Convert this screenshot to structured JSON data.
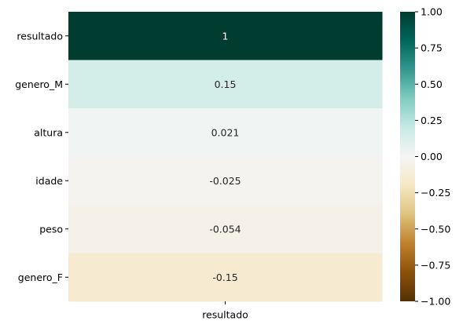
{
  "chart_data": {
    "type": "heatmap",
    "title": "",
    "xlabel": "",
    "ylabel": "",
    "columns": [
      "resultado"
    ],
    "rows": [
      "resultado",
      "genero_M",
      "altura",
      "idade",
      "peso",
      "genero_F"
    ],
    "values": [
      [
        1
      ],
      [
        0.15
      ],
      [
        0.021
      ],
      [
        -0.025
      ],
      [
        -0.054
      ],
      [
        -0.15
      ]
    ],
    "cell_labels": [
      "1",
      "0.15",
      "0.021",
      "-0.025",
      "-0.054",
      "-0.15"
    ],
    "colormap": "BrBG",
    "vmin": -1.0,
    "vmax": 1.0,
    "colorbar": {
      "ticks": [
        1.0,
        0.75,
        0.5,
        0.25,
        0.0,
        -0.25,
        -0.5,
        -0.75,
        -1.0
      ],
      "tick_labels": [
        "1.00",
        "0.75",
        "0.50",
        "0.25",
        "0.00",
        "−0.25",
        "−0.50",
        "−0.75",
        "−1.00"
      ]
    },
    "grid": false,
    "legend": "right"
  }
}
